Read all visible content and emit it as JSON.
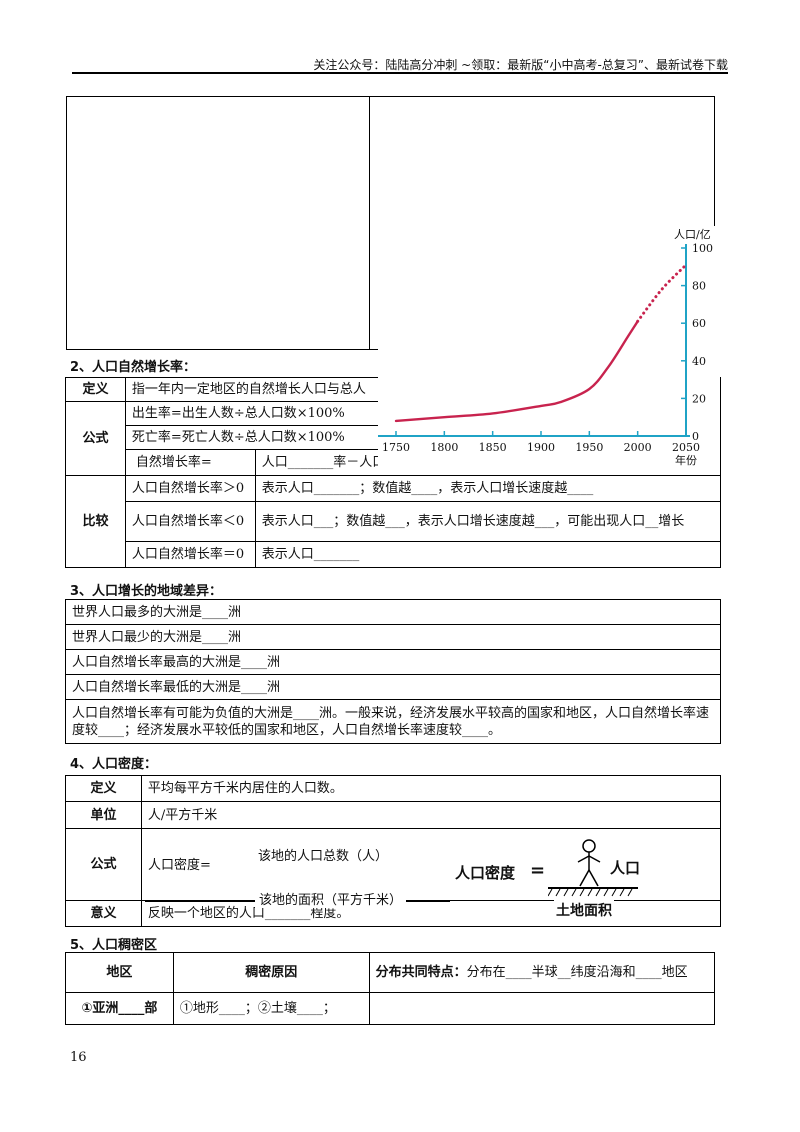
{
  "header": {
    "text": "关注公众号：陆陆高分冲刺 ~领取：最新版“小中高考-总复习”、最新试卷下载"
  },
  "section2": {
    "title": "2、人口自然增长率：",
    "def_label": "定义",
    "def_text": "指一年内一定地区的自然增长人口与总人",
    "formula_label": "公式",
    "birth": "出生率=出生人数÷总人口数×100%",
    "death": "死亡率=死亡人数÷总人口数×100%",
    "natural_label": "自然增长率=",
    "natural_expr": "人口_______率－人口_______率",
    "compare_label": "比较",
    "rows": [
      {
        "cond": "人口自然增长率＞0",
        "desc": "表示人口_______；数值越____，表示人口增长速度越____"
      },
      {
        "cond": "人口自然增长率＜0",
        "desc": "表示人口___；数值越___，表示人口增长速度越___，可能出现人口__增长"
      },
      {
        "cond": "人口自然增长率＝0",
        "desc": "表示人口_______"
      }
    ]
  },
  "section3": {
    "title": "3、人口增长的地域差异：",
    "rows": [
      "世界人口最多的大洲是____洲",
      "世界人口最少的大洲是____洲",
      "人口自然增长率最高的大洲是____洲",
      "人口自然增长率最低的大洲是____洲",
      "人口自然增长率有可能为负值的大洲是____洲。一般来说，经济发展水平较高的国家和地区，人口自然增长率速度较____；经济发展水平较低的国家和地区，人口自然增长率速度较____。"
    ]
  },
  "section4": {
    "title": "4、人口密度：",
    "def_label": "定义",
    "def_text": "平均每平方千米内居住的人口数。",
    "unit_label": "单位",
    "unit_text": "人/平方千米",
    "formula_label": "公式",
    "formula_left": "人口密度=",
    "numerator": "该地的人口总数（人）",
    "denominator": "该地的面积（平方千米）",
    "fig_left": "人口密度",
    "fig_eq": "=",
    "fig_person": "人口",
    "fig_land": "土地面积",
    "meaning_label": "意义",
    "meaning_text": "反映一个地区的人口_______程度。"
  },
  "section5": {
    "title": "5、人口稠密区",
    "col1": "地区",
    "col2": "稠密原因",
    "col3_bold": "分布共同特点：",
    "col3_text": "分布在____半球__纬度沿海和____地区",
    "row1_c1": "①亚洲____部",
    "row1_c2": "①地形____；②土壤____；"
  },
  "chart_data": {
    "type": "line",
    "ylabel": "人口/亿",
    "xlabel": "年份",
    "x_ticks": [
      "1750",
      "1800",
      "1850",
      "1900",
      "1950",
      "2000",
      "2050"
    ],
    "y_ticks": [
      "0",
      "20",
      "40",
      "60",
      "80",
      "100"
    ],
    "xlim": [
      1750,
      2050
    ],
    "ylim": [
      0,
      100
    ],
    "series": [
      {
        "style": "solid",
        "x": [
          1750,
          1800,
          1850,
          1900,
          1920,
          1950,
          1970,
          1990,
          2000
        ],
        "y": [
          8,
          10,
          12,
          16,
          18,
          25,
          37,
          53,
          61
        ]
      },
      {
        "style": "dotted",
        "x": [
          2000,
          2025,
          2050
        ],
        "y": [
          61,
          78,
          91
        ]
      }
    ],
    "line_color": "#c8234e",
    "axis_color": "#1fa3c6"
  },
  "page_number": "16"
}
